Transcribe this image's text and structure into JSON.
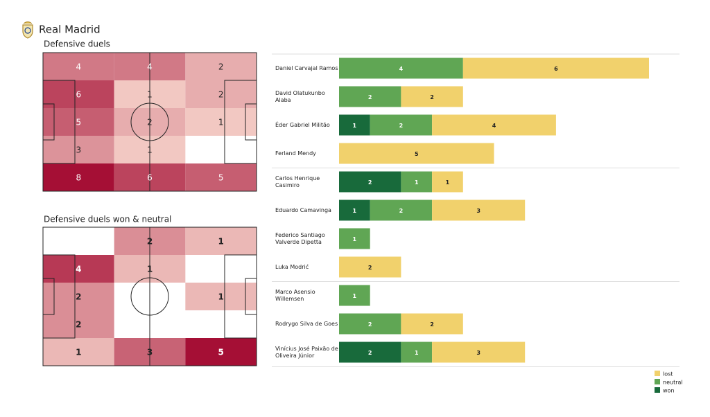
{
  "header": {
    "title": "Real Madrid"
  },
  "chart_data": [
    {
      "type": "heatmap",
      "title": "Defensive duels",
      "values": [
        [
          4,
          4,
          2
        ],
        [
          6,
          1,
          2
        ],
        [
          5,
          2,
          1
        ],
        [
          3,
          1,
          null
        ],
        [
          8,
          6,
          5
        ]
      ],
      "colors": [
        "#fde2d6",
        "#a50f35"
      ],
      "bold": false
    },
    {
      "type": "heatmap",
      "title": "Defensive duels won & neutral",
      "values": [
        [
          null,
          2,
          1
        ],
        [
          4,
          1,
          null
        ],
        [
          2,
          null,
          1
        ],
        [
          2,
          null,
          null
        ],
        [
          1,
          3,
          5
        ]
      ],
      "colors": [
        "#fde2d6",
        "#a50f35"
      ],
      "bold": true
    },
    {
      "type": "bar",
      "orientation": "horizontal",
      "stacked": true,
      "categories": [
        "Daniel Carvajal Ramos",
        "David Olatukunbo Alaba",
        "Éder Gabriel Militão",
        "Ferland Mendy",
        "Carlos Henrique Casimiro",
        "Eduardo Camavinga",
        "Federico Santiago Valverde Dipetta",
        "Luka Modrić",
        "Marco Asensio Willemsen",
        "Rodrygo Silva de Goes",
        "Vinícius José Paixão de Oliveira Júnior"
      ],
      "series": [
        {
          "name": "won",
          "color": "#186a3b",
          "values": [
            null,
            null,
            1,
            null,
            2,
            1,
            null,
            null,
            null,
            null,
            2
          ]
        },
        {
          "name": "neutral",
          "color": "#60a654",
          "values": [
            4,
            2,
            2,
            null,
            1,
            2,
            1,
            null,
            1,
            2,
            1
          ]
        },
        {
          "name": "lost",
          "color": "#f1d16c",
          "values": [
            6,
            2,
            4,
            5,
            1,
            3,
            null,
            2,
            null,
            2,
            3
          ]
        }
      ],
      "legend": "lower right"
    }
  ]
}
